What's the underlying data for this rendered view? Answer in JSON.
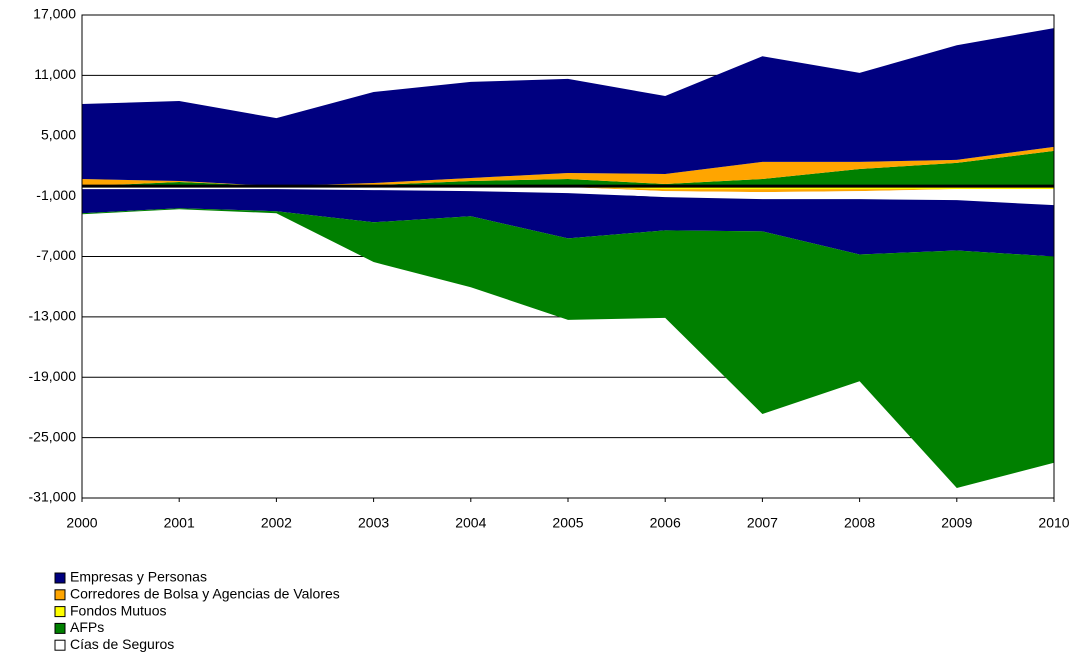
{
  "chart_data": {
    "type": "stacked_area",
    "x": [
      2000,
      2001,
      2002,
      2003,
      2004,
      2005,
      2006,
      2007,
      2008,
      2009,
      2010
    ],
    "xlim": [
      2000,
      2010
    ],
    "xticks": [
      2000,
      2001,
      2002,
      2003,
      2004,
      2005,
      2006,
      2007,
      2008,
      2009,
      2010
    ],
    "ylim": [
      -31000,
      17000
    ],
    "yticks": [
      {
        "value": 17000,
        "label": "17,000"
      },
      {
        "value": 11000,
        "label": "11,000"
      },
      {
        "value": 5000,
        "label": "5,000"
      },
      {
        "value": -1000,
        "label": "-1,000"
      },
      {
        "value": -7000,
        "label": "-7,000"
      },
      {
        "value": -13000,
        "label": "-13,000"
      },
      {
        "value": -19000,
        "label": "-19,000"
      },
      {
        "value": -25000,
        "label": "-25,000"
      },
      {
        "value": -31000,
        "label": "-31,000"
      }
    ],
    "grid": true,
    "legend": "bottom-left",
    "series": [
      {
        "name": "Empresas y Personas",
        "color": "#000080",
        "values": [
          7450,
          7950,
          6750,
          9050,
          9550,
          9350,
          7750,
          10500,
          8850,
          11400,
          11800
        ]
      },
      {
        "name": "Corredores de Bolsa y Agencias de Valores",
        "color": "#ffa500",
        "values": [
          700,
          100,
          0,
          200,
          300,
          600,
          1000,
          1700,
          700,
          300,
          400
        ]
      },
      {
        "name": "Fondos Mutuos",
        "color": "#ffff00",
        "values": [
          0,
          0,
          0,
          0,
          0,
          0,
          0,
          0,
          0,
          0,
          0
        ]
      },
      {
        "name": "AFPs",
        "color": "#008000",
        "values": [
          0,
          400,
          0,
          100,
          500,
          700,
          200,
          700,
          1700,
          2300,
          3500
        ]
      },
      {
        "name": "Cías de Seguros",
        "color": "#ffffff",
        "values": [
          0,
          0,
          0,
          0,
          0,
          0,
          0,
          0,
          0,
          0,
          0
        ]
      },
      {
        "name": "Fondos Mutuos",
        "color": "#ffff00",
        "values": [
          0,
          0,
          0,
          0,
          0,
          -100,
          -300,
          -300,
          -300,
          -300,
          -300
        ]
      },
      {
        "name": "Corredores de Bolsa y Agencias de Valores",
        "color": "#ffa500",
        "values": [
          0,
          0,
          0,
          0,
          0,
          0,
          -200,
          -300,
          -200,
          0,
          0
        ]
      },
      {
        "name": "Cías de Seguros",
        "color": "#ffffff",
        "values": [
          -300,
          -300,
          -300,
          -400,
          -500,
          -600,
          -600,
          -700,
          -800,
          -1100,
          -1600
        ]
      },
      {
        "name": "Empresas y Personas",
        "color": "#000080",
        "values": [
          -2400,
          -1900,
          -2200,
          -3200,
          -2500,
          -4500,
          -3300,
          -3200,
          -5500,
          -5000,
          -5100
        ]
      },
      {
        "name": "AFPs",
        "color": "#008000",
        "values": [
          -100,
          -100,
          -200,
          -3950,
          -7050,
          -8100,
          -8700,
          -18150,
          -12600,
          -23600,
          -20500
        ]
      }
    ]
  }
}
